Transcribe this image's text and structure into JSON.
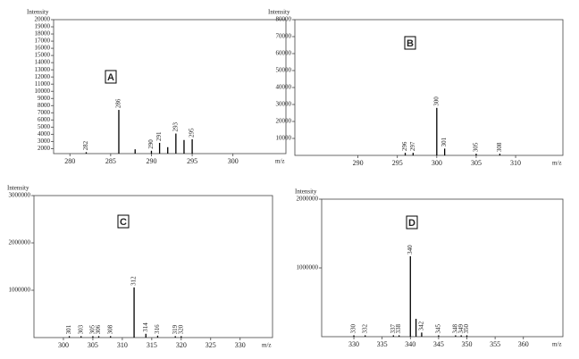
{
  "chart_data": [
    {
      "type": "bar",
      "y_label": "Intensity",
      "x_label": "m/z",
      "panel": "A",
      "xlim": [
        278,
        306.5
      ],
      "xticks": [
        280,
        285,
        290,
        295,
        300
      ],
      "ylim": [
        1300,
        20000
      ],
      "yticks": [
        2000,
        3000,
        4000,
        5000,
        6000,
        7000,
        8000,
        9000,
        10000,
        11000,
        12000,
        13000,
        14000,
        15000,
        16000,
        17000,
        18000,
        19000,
        20000
      ],
      "x": [
        282,
        286,
        288,
        290,
        291,
        292,
        293,
        294,
        295
      ],
      "values": [
        1500,
        7400,
        1900,
        1700,
        2800,
        2200,
        4100,
        3200,
        3300
      ],
      "peak_labels": [
        "282",
        "286",
        null,
        "290",
        "291",
        null,
        "293",
        null,
        "295"
      ],
      "color": "#000000"
    },
    {
      "type": "bar",
      "y_label": "Intensity",
      "x_label": "m/z",
      "panel": "B",
      "xlim": [
        282,
        316
      ],
      "xticks": [
        290,
        295,
        300,
        305,
        310
      ],
      "ylim": [
        0,
        80000
      ],
      "yticks": [
        10000,
        20000,
        30000,
        40000,
        50000,
        60000,
        70000,
        80000
      ],
      "x": [
        296,
        297,
        300,
        301,
        305,
        308
      ],
      "values": [
        1500,
        1500,
        28000,
        4000,
        1000,
        1000
      ],
      "peak_labels": [
        "296",
        "297",
        "300",
        "301",
        "305",
        "308"
      ],
      "color": "#000000"
    },
    {
      "type": "bar",
      "y_label": "Intensity",
      "x_label": "m/z",
      "panel": "C",
      "xlim": [
        295,
        335.5
      ],
      "xticks": [
        300,
        305,
        310,
        315,
        320,
        325,
        330
      ],
      "ylim": [
        0,
        3000000
      ],
      "yticks": [
        1000000,
        2000000,
        3000000
      ],
      "x": [
        301,
        303,
        305,
        306,
        308,
        312,
        314,
        316,
        319,
        320
      ],
      "values": [
        30000,
        30000,
        30000,
        30000,
        30000,
        1060000,
        80000,
        40000,
        30000,
        30000
      ],
      "peak_labels": [
        "301",
        "303",
        "305",
        "306",
        "308",
        "312",
        "314",
        "316",
        "319",
        "320"
      ],
      "color": "#000000"
    },
    {
      "type": "bar",
      "y_label": "Intensity",
      "x_label": "m/z",
      "panel": "D",
      "xlim": [
        324.3,
        367
      ],
      "xticks": [
        330,
        335,
        340,
        345,
        350,
        355,
        360
      ],
      "ylim": [
        0,
        2000000
      ],
      "yticks": [
        1000000,
        2000000
      ],
      "x": [
        330,
        332,
        337,
        338,
        340,
        341,
        342,
        345,
        348,
        349,
        350
      ],
      "values": [
        20000,
        20000,
        20000,
        20000,
        1170000,
        260000,
        60000,
        20000,
        20000,
        20000,
        20000
      ],
      "peak_labels": [
        "330",
        "332",
        "337",
        "338",
        "340",
        null,
        "342",
        "345",
        "348",
        "349",
        "350"
      ],
      "color": "#000000"
    }
  ]
}
